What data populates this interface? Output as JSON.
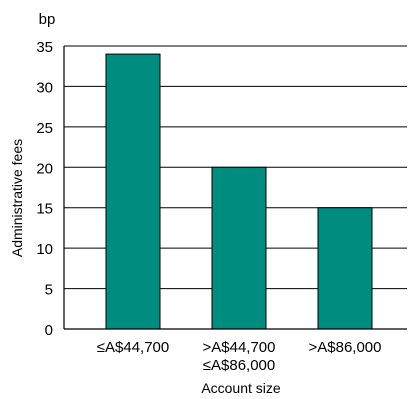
{
  "chart_data": {
    "type": "bar",
    "title": "",
    "unit_label": "bp",
    "ylabel": "Administrative fees",
    "xlabel": "Account size",
    "categories": [
      [
        "≤A$44,700"
      ],
      [
        ">A$44,700",
        "≤A$86,000"
      ],
      [
        ">A$86,000"
      ]
    ],
    "values": [
      34,
      20,
      15
    ],
    "ylim": [
      0,
      35
    ],
    "yticks": [
      0,
      5,
      10,
      15,
      20,
      25,
      30,
      35
    ],
    "grid": true,
    "bar_color": "#008c7f",
    "bar_edge_color": "#000000"
  }
}
